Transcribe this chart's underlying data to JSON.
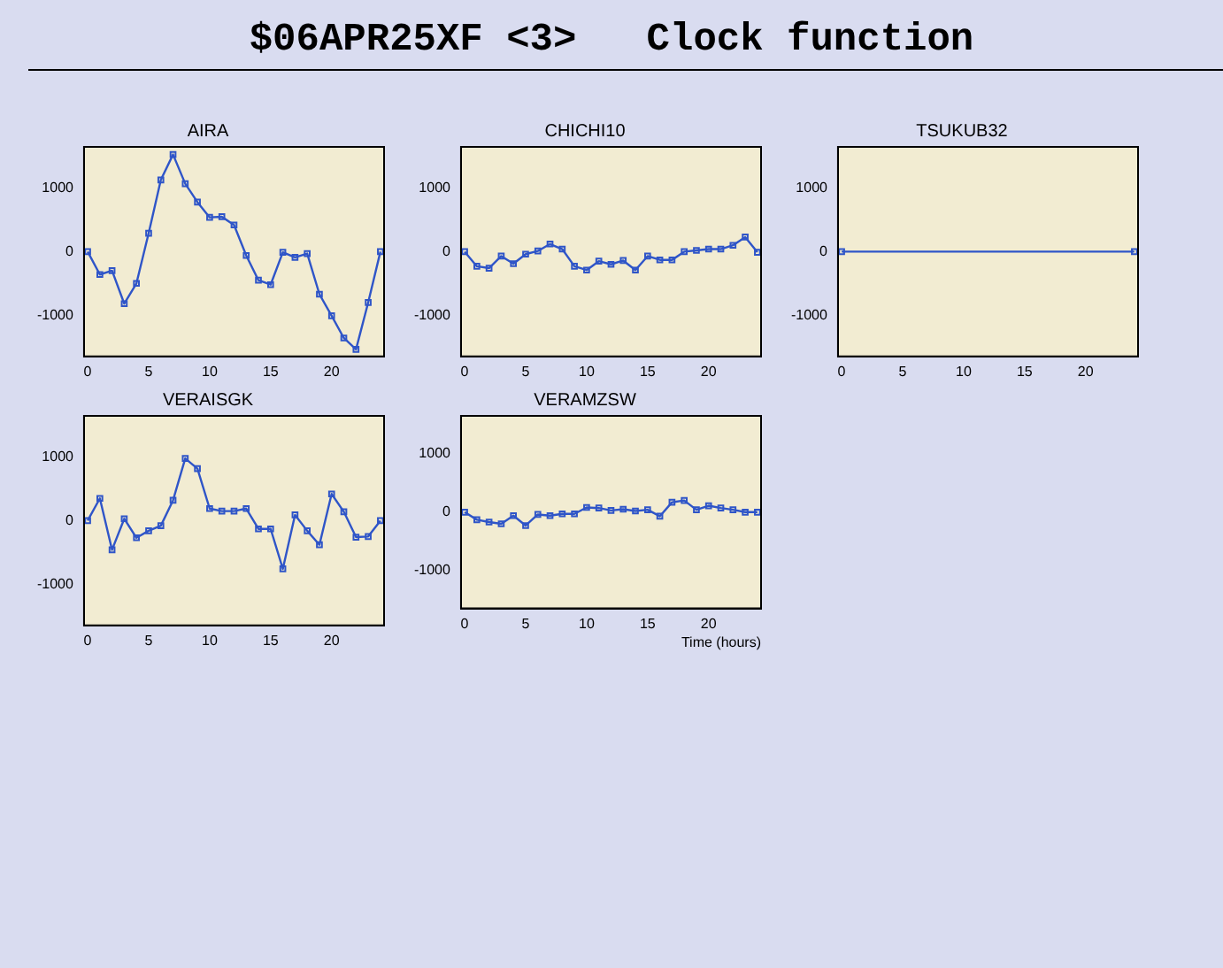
{
  "chart_data": [
    {
      "type": "line",
      "title": "AIRA",
      "annotations": [
        "$06APR25XF <3>   Clock function"
      ],
      "x": [
        0,
        1,
        2,
        3,
        4,
        5,
        6,
        7,
        8,
        9,
        10,
        11,
        12,
        13,
        14,
        15,
        16,
        17,
        18,
        19,
        20,
        21,
        22,
        23,
        24
      ],
      "series": [
        {
          "color": "#2f55c8",
          "values": [
            0,
            -360,
            -300,
            -820,
            -500,
            290,
            1130,
            1530,
            1070,
            780,
            540,
            550,
            420,
            -60,
            -450,
            -520,
            -10,
            -90,
            -30,
            -670,
            -1010,
            -1360,
            -1540,
            -800,
            0
          ]
        }
      ],
      "xlim": [
        -0.3,
        24.3
      ],
      "xticks": [
        0,
        5,
        10,
        15,
        20
      ],
      "ylim": [
        -1650,
        1650
      ],
      "yticks": [
        -1000,
        0,
        1000
      ],
      "marker": "square",
      "grid": false,
      "legend": false
    },
    {
      "type": "line",
      "title": "CHICHI10",
      "x": [
        0,
        1,
        2,
        3,
        4,
        5,
        6,
        7,
        8,
        9,
        10,
        11,
        12,
        13,
        14,
        15,
        16,
        17,
        18,
        19,
        20,
        21,
        22,
        23,
        24
      ],
      "series": [
        {
          "color": "#2f55c8",
          "values": [
            0,
            -230,
            -260,
            -70,
            -190,
            -40,
            10,
            120,
            40,
            -230,
            -290,
            -150,
            -200,
            -140,
            -290,
            -70,
            -130,
            -130,
            0,
            20,
            40,
            40,
            100,
            230,
            -10
          ]
        }
      ],
      "xlim": [
        -0.3,
        24.3
      ],
      "xticks": [
        0,
        5,
        10,
        15,
        20
      ],
      "ylim": [
        -1650,
        1650
      ],
      "yticks": [
        -1000,
        0,
        1000
      ],
      "marker": "square",
      "grid": false,
      "legend": false
    },
    {
      "type": "line",
      "title": "TSUKUB32",
      "x": [
        0,
        24
      ],
      "series": [
        {
          "color": "#2f55c8",
          "values": [
            0,
            0
          ]
        }
      ],
      "xlim": [
        -0.3,
        24.3
      ],
      "xticks": [
        0,
        5,
        10,
        15,
        20
      ],
      "ylim": [
        -1650,
        1650
      ],
      "yticks": [
        -1000,
        0,
        1000
      ],
      "marker": "square",
      "grid": false,
      "legend": false
    },
    {
      "type": "line",
      "title": "VERAISGK",
      "x": [
        0,
        1,
        2,
        3,
        4,
        5,
        6,
        7,
        8,
        9,
        10,
        11,
        12,
        13,
        14,
        15,
        16,
        17,
        18,
        19,
        20,
        21,
        22,
        23,
        24
      ],
      "series": [
        {
          "color": "#2f55c8",
          "values": [
            0,
            350,
            -460,
            30,
            -270,
            -160,
            -80,
            320,
            980,
            820,
            190,
            150,
            150,
            190,
            -130,
            -130,
            -760,
            90,
            -160,
            -380,
            420,
            140,
            -260,
            -250,
            0
          ]
        }
      ],
      "xlim": [
        -0.3,
        24.3
      ],
      "xticks": [
        0,
        5,
        10,
        15,
        20
      ],
      "ylim": [
        -1650,
        1650
      ],
      "yticks": [
        -1000,
        0,
        1000
      ],
      "marker": "square",
      "grid": false,
      "legend": false
    },
    {
      "type": "line",
      "title": "VERAMZSW",
      "xlabel": "Time (hours)",
      "x": [
        0,
        1,
        2,
        3,
        4,
        5,
        6,
        7,
        8,
        9,
        10,
        11,
        12,
        13,
        14,
        15,
        16,
        17,
        18,
        19,
        20,
        21,
        22,
        23,
        24
      ],
      "series": [
        {
          "color": "#2f55c8",
          "values": [
            0,
            -130,
            -170,
            -200,
            -60,
            -230,
            -40,
            -60,
            -30,
            -30,
            80,
            70,
            30,
            50,
            20,
            40,
            -70,
            170,
            200,
            40,
            110,
            70,
            40,
            0,
            0
          ]
        }
      ],
      "xlim": [
        -0.3,
        24.3
      ],
      "xticks": [
        0,
        5,
        10,
        15,
        20
      ],
      "ylim": [
        -1650,
        1650
      ],
      "yticks": [
        -1000,
        0,
        1000
      ],
      "marker": "square",
      "grid": false,
      "legend": false
    }
  ]
}
